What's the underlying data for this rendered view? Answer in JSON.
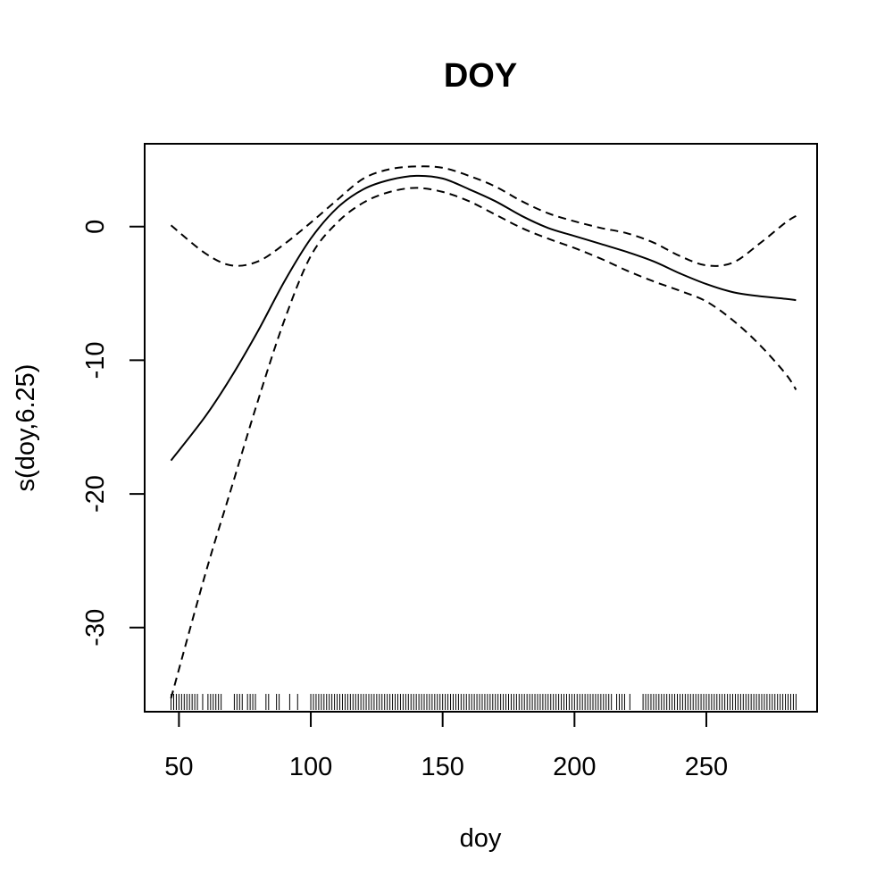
{
  "chart_data": {
    "type": "line",
    "title": "DOY",
    "xlabel": "doy",
    "ylabel": "s(doy,6.25)",
    "xlim": [
      37,
      292
    ],
    "ylim": [
      -36.3,
      6.2
    ],
    "x_ticks": [
      50,
      100,
      150,
      200,
      250
    ],
    "x_tick_labels": [
      "50",
      "100",
      "150",
      "200",
      "250"
    ],
    "y_ticks": [
      0,
      -10,
      -20,
      -30
    ],
    "y_tick_labels": [
      "0",
      "-10",
      "-20",
      "-30"
    ],
    "grid": false,
    "legend": "none",
    "series": [
      {
        "role": "fit",
        "style": "solid",
        "x": [
          47,
          60,
          70,
          80,
          90,
          100,
          110,
          120,
          130,
          140,
          150,
          160,
          170,
          180,
          190,
          200,
          210,
          220,
          230,
          240,
          250,
          260,
          270,
          280,
          284
        ],
        "y": [
          -17.5,
          -14.2,
          -11.2,
          -7.8,
          -4.1,
          -0.9,
          1.4,
          2.8,
          3.5,
          3.8,
          3.6,
          2.8,
          1.9,
          0.8,
          -0.1,
          -0.7,
          -1.3,
          -1.9,
          -2.6,
          -3.5,
          -4.3,
          -4.9,
          -5.2,
          -5.4,
          -5.5
        ]
      },
      {
        "role": "upper",
        "style": "dashed",
        "x": [
          47,
          60,
          70,
          80,
          90,
          100,
          110,
          120,
          130,
          140,
          150,
          160,
          170,
          180,
          190,
          200,
          210,
          220,
          230,
          240,
          250,
          260,
          270,
          280,
          284
        ],
        "y": [
          0.1,
          -2.0,
          -2.9,
          -2.6,
          -1.3,
          0.3,
          2.0,
          3.6,
          4.3,
          4.5,
          4.4,
          3.8,
          3.0,
          1.9,
          1.0,
          0.4,
          -0.1,
          -0.5,
          -1.2,
          -2.2,
          -2.9,
          -2.7,
          -1.3,
          0.3,
          0.8
        ]
      },
      {
        "role": "lower",
        "style": "dashed",
        "x": [
          47,
          60,
          70,
          80,
          90,
          100,
          110,
          120,
          130,
          140,
          150,
          160,
          170,
          180,
          190,
          200,
          210,
          220,
          230,
          240,
          250,
          260,
          270,
          280,
          284
        ],
        "y": [
          -35.3,
          -26.0,
          -19.5,
          -13.0,
          -7.0,
          -2.2,
          0.3,
          1.8,
          2.6,
          2.9,
          2.6,
          1.9,
          0.9,
          -0.1,
          -0.9,
          -1.6,
          -2.4,
          -3.3,
          -4.1,
          -4.8,
          -5.6,
          -7.0,
          -8.8,
          -11.0,
          -12.2
        ]
      }
    ],
    "rug_x": [
      47,
      48,
      49,
      50,
      51,
      52,
      53,
      54,
      55,
      56,
      57,
      59,
      61,
      62,
      63,
      64,
      65,
      66,
      71,
      72,
      73,
      74,
      76,
      77,
      78,
      79,
      83,
      84,
      87,
      88,
      92,
      95,
      100,
      101,
      102,
      103,
      104,
      105,
      106,
      107,
      108,
      109,
      110,
      111,
      112,
      113,
      114,
      115,
      116,
      117,
      118,
      119,
      120,
      121,
      122,
      123,
      124,
      125,
      126,
      127,
      128,
      129,
      130,
      131,
      132,
      133,
      134,
      135,
      136,
      137,
      138,
      139,
      140,
      141,
      142,
      143,
      144,
      145,
      146,
      147,
      148,
      149,
      150,
      151,
      152,
      153,
      154,
      155,
      156,
      157,
      158,
      159,
      160,
      161,
      162,
      163,
      164,
      165,
      166,
      167,
      168,
      169,
      170,
      171,
      172,
      173,
      174,
      175,
      176,
      177,
      178,
      179,
      180,
      181,
      182,
      183,
      184,
      185,
      186,
      187,
      188,
      189,
      190,
      191,
      192,
      193,
      194,
      195,
      196,
      197,
      198,
      199,
      200,
      201,
      202,
      203,
      204,
      205,
      206,
      207,
      208,
      209,
      210,
      211,
      212,
      213,
      214,
      216,
      217,
      218,
      219,
      221,
      226,
      227,
      228,
      229,
      230,
      231,
      232,
      233,
      234,
      235,
      236,
      237,
      238,
      239,
      240,
      241,
      242,
      243,
      244,
      245,
      246,
      247,
      248,
      249,
      250,
      251,
      252,
      253,
      254,
      255,
      256,
      257,
      258,
      259,
      260,
      261,
      262,
      263,
      264,
      265,
      266,
      267,
      268,
      269,
      270,
      271,
      272,
      273,
      274,
      275,
      276,
      277,
      278,
      279,
      280,
      281,
      282,
      283,
      284
    ]
  }
}
